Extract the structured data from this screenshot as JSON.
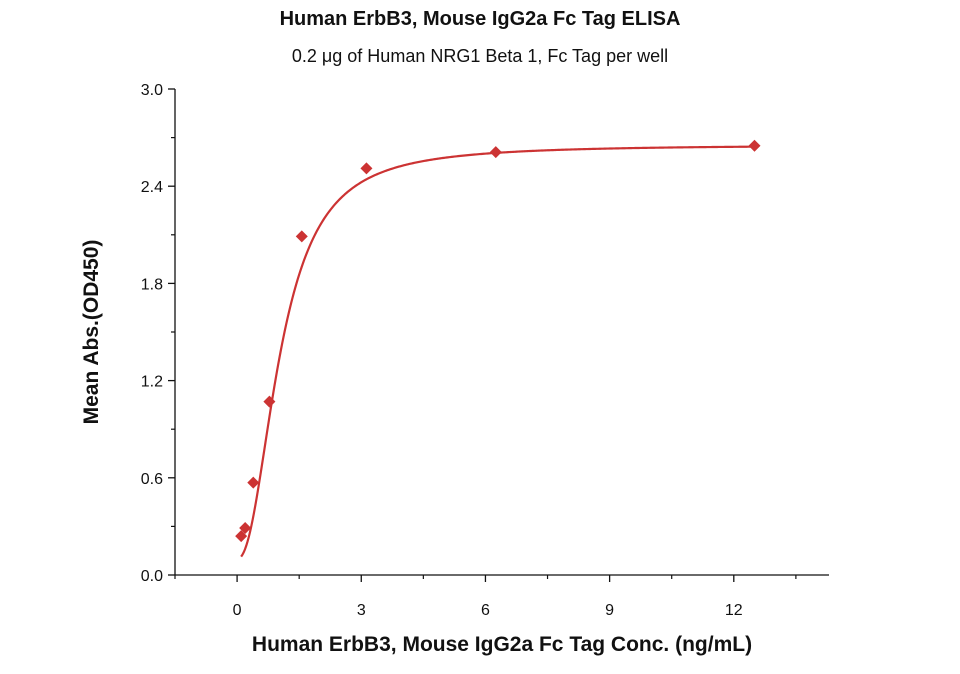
{
  "chart_data": {
    "type": "scatter",
    "title": "Human ErbB3, Mouse IgG2a Fc Tag ELISA",
    "subtitle": "0.2 μg of Human NRG1 Beta 1, Fc Tag per well",
    "xlabel": "Human ErbB3, Mouse IgG2a Fc Tag Conc. (ng/mL)",
    "ylabel": "Mean Abs.(OD450)",
    "xlim": [
      -1.5,
      14.3
    ],
    "ylim": [
      0.0,
      3.0
    ],
    "x_ticks": [
      0,
      3,
      6,
      9,
      12
    ],
    "x_tick_labels": [
      "0",
      "3",
      "6",
      "9",
      "12"
    ],
    "y_ticks": [
      0.0,
      0.6,
      1.2,
      1.8,
      2.4,
      3.0
    ],
    "y_tick_labels": [
      "0.0",
      "0.6",
      "1.2",
      "1.8",
      "2.4",
      "3.0"
    ],
    "series": [
      {
        "color": "#cc3333",
        "marker": "diamond",
        "x": [
          0.098,
          0.195,
          0.391,
          0.781,
          1.563,
          3.125,
          6.25,
          12.5
        ],
        "y": [
          0.24,
          0.29,
          0.57,
          1.07,
          2.09,
          2.51,
          2.61,
          2.65
        ]
      }
    ],
    "fit_curve": {
      "type": "4PL",
      "color": "#cc3333",
      "bottom": 0.1,
      "top": 2.655,
      "ec50": 1.05,
      "hill": 2.2
    },
    "grid": false,
    "legend": "none"
  }
}
